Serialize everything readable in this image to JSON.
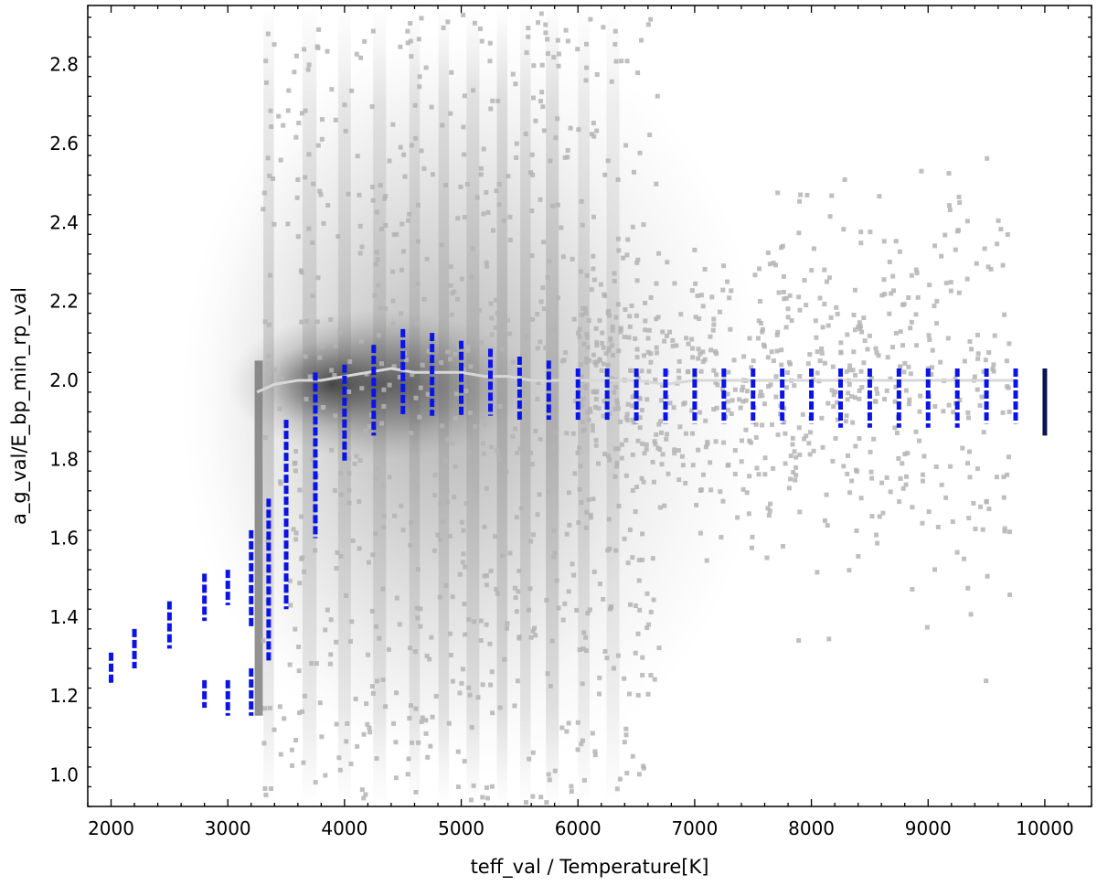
{
  "chart_data": {
    "type": "scatter",
    "title": "",
    "xlabel": "teff_val / Temperature[K]",
    "ylabel": "a_g_val/E_bp_min_rp_val",
    "xlim": [
      1800,
      10400
    ],
    "ylim": [
      0.92,
      2.95
    ],
    "x_ticks": [
      2000,
      3000,
      4000,
      5000,
      6000,
      7000,
      8000,
      9000,
      10000
    ],
    "y_ticks": [
      1.0,
      1.2,
      1.4,
      1.6,
      1.8,
      2.0,
      2.2,
      2.4,
      2.6,
      2.8
    ],
    "x_tick_labels": [
      "2000",
      "3000",
      "4000",
      "5000",
      "6000",
      "7000",
      "8000",
      "9000",
      "10000"
    ],
    "y_tick_labels": [
      "1.0",
      "1.2",
      "1.4",
      "1.6",
      "1.8",
      "2.0",
      "2.2",
      "2.4",
      "2.6",
      "2.8"
    ],
    "grid": false,
    "colors": {
      "background_density": "#6e6e6e",
      "sparse_points": "#b4b4b4",
      "median_line": "#d8d8d8",
      "model_grid": "#0a14e6",
      "model_grid_dense": "#0a1450"
    },
    "series": [
      {
        "role": "model_grid",
        "style": "vertical_bars",
        "points": [
          {
            "x": 2000,
            "ymin": 1.23,
            "ymax": 1.31
          },
          {
            "x": 2200,
            "ymin": 1.27,
            "ymax": 1.37
          },
          {
            "x": 2500,
            "ymin": 1.32,
            "ymax": 1.44
          },
          {
            "x": 2800,
            "ymin": 1.39,
            "ymax": 1.51
          },
          {
            "x": 2800,
            "ymin": 1.17,
            "ymax": 1.24
          },
          {
            "x": 3000,
            "ymin": 1.43,
            "ymax": 1.52
          },
          {
            "x": 3000,
            "ymin": 1.15,
            "ymax": 1.24
          },
          {
            "x": 3200,
            "ymin": 1.37,
            "ymax": 1.62
          },
          {
            "x": 3200,
            "ymin": 1.15,
            "ymax": 1.27
          },
          {
            "x": 3350,
            "ymin": 1.29,
            "ymax": 1.7
          },
          {
            "x": 3500,
            "ymin": 1.42,
            "ymax": 1.9
          },
          {
            "x": 3750,
            "ymin": 1.6,
            "ymax": 2.02
          },
          {
            "x": 4000,
            "ymin": 1.79,
            "ymax": 2.04
          },
          {
            "x": 4250,
            "ymin": 1.86,
            "ymax": 2.09
          },
          {
            "x": 4500,
            "ymin": 1.91,
            "ymax": 2.13
          },
          {
            "x": 4750,
            "ymin": 1.91,
            "ymax": 2.12
          },
          {
            "x": 5000,
            "ymin": 1.91,
            "ymax": 2.1
          },
          {
            "x": 5250,
            "ymin": 1.91,
            "ymax": 2.08
          },
          {
            "x": 5500,
            "ymin": 1.9,
            "ymax": 2.06
          },
          {
            "x": 5750,
            "ymin": 1.9,
            "ymax": 2.05
          },
          {
            "x": 6000,
            "ymin": 1.9,
            "ymax": 2.03
          },
          {
            "x": 6250,
            "ymin": 1.9,
            "ymax": 2.03
          },
          {
            "x": 6500,
            "ymin": 1.89,
            "ymax": 2.03
          },
          {
            "x": 6750,
            "ymin": 1.89,
            "ymax": 2.03
          },
          {
            "x": 7000,
            "ymin": 1.89,
            "ymax": 2.03
          },
          {
            "x": 7250,
            "ymin": 1.89,
            "ymax": 2.03
          },
          {
            "x": 7500,
            "ymin": 1.89,
            "ymax": 2.03
          },
          {
            "x": 7750,
            "ymin": 1.89,
            "ymax": 2.03
          },
          {
            "x": 8000,
            "ymin": 1.89,
            "ymax": 2.03
          },
          {
            "x": 8250,
            "ymin": 1.88,
            "ymax": 2.03
          },
          {
            "x": 8500,
            "ymin": 1.88,
            "ymax": 2.03
          },
          {
            "x": 8750,
            "ymin": 1.88,
            "ymax": 2.03
          },
          {
            "x": 9000,
            "ymin": 1.88,
            "ymax": 2.03
          },
          {
            "x": 9250,
            "ymin": 1.88,
            "ymax": 2.03
          },
          {
            "x": 9500,
            "ymin": 1.89,
            "ymax": 2.03
          },
          {
            "x": 9750,
            "ymin": 1.89,
            "ymax": 2.03
          },
          {
            "x": 10000,
            "ymin": 1.86,
            "ymax": 2.03
          }
        ]
      },
      {
        "role": "median_line",
        "style": "line",
        "x": [
          3250,
          3400,
          3600,
          3800,
          4000,
          4200,
          4400,
          4600,
          4800,
          5000,
          5200,
          5400,
          5600,
          5800,
          6000,
          6250,
          6500,
          6750,
          7000,
          7250,
          7500,
          7750,
          8000,
          8250,
          8500,
          8750,
          9000,
          9250,
          9500,
          9750
        ],
        "y": [
          1.97,
          1.99,
          2.0,
          2.0,
          2.01,
          2.02,
          2.03,
          2.02,
          2.02,
          2.02,
          2.01,
          2.01,
          2.0,
          2.0,
          2.0,
          2.0,
          2.0,
          1.99,
          2.0,
          2.0,
          2.0,
          2.0,
          2.0,
          2.0,
          2.0,
          2.0,
          2.0,
          2.0,
          2.0,
          2.0
        ]
      }
    ]
  }
}
